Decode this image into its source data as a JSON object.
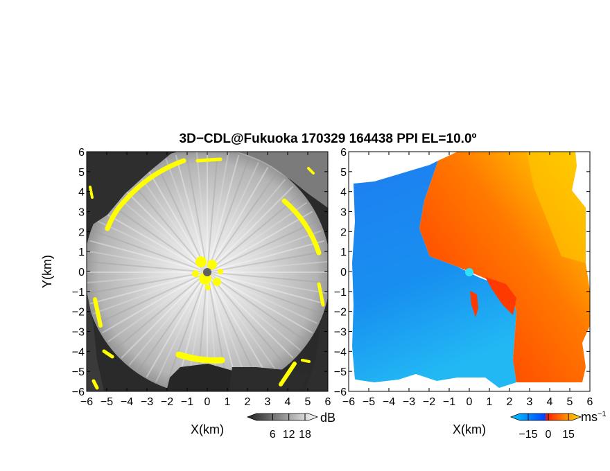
{
  "title": "3D−CDL@Fukuoka 170329 164438 PPI EL=10.0º",
  "chart_data": [
    {
      "type": "heatmap",
      "panel": "left",
      "quantity_unit": "dB",
      "xlabel": "X(km)",
      "ylabel": "Y(km)",
      "xlim": [
        -6,
        6
      ],
      "ylim": [
        -6,
        6
      ],
      "xticks": [
        "−6",
        "−5",
        "−4",
        "−3",
        "−2",
        "−1",
        "0",
        "1",
        "2",
        "3",
        "4",
        "5",
        "6"
      ],
      "yticks": [
        "6",
        "5",
        "4",
        "3",
        "2",
        "1",
        "0",
        "−1",
        "−2",
        "−3",
        "−4",
        "−5",
        "−6"
      ],
      "colorbar": {
        "label": "dB",
        "ticks": [
          "6",
          "12",
          "18"
        ],
        "tick_values": [
          6,
          12,
          18
        ],
        "colors": [
          "#202020",
          "#ffffff"
        ]
      },
      "flag_color": "#ffff00",
      "radar_site": [
        0,
        0
      ]
    },
    {
      "type": "heatmap",
      "panel": "right",
      "quantity_unit": "ms⁻¹",
      "xlabel": "X(km)",
      "ylabel": "",
      "xlim": [
        -6,
        6
      ],
      "ylim": [
        -6,
        6
      ],
      "xticks": [
        "−6",
        "−5",
        "−4",
        "−3",
        "−2",
        "−1",
        "0",
        "1",
        "2",
        "3",
        "4",
        "5",
        "6"
      ],
      "yticks": [
        "6",
        "5",
        "4",
        "3",
        "2",
        "1",
        "0",
        "−1",
        "−2",
        "−3",
        "−4",
        "−5",
        "−6"
      ],
      "colorbar": {
        "label": "ms",
        "label_superscript": "−1",
        "ticks": [
          "−15",
          "0",
          "15"
        ],
        "tick_values": [
          -15,
          0,
          15
        ],
        "colors": [
          "#00ccff",
          "#0044ff",
          "#ff2200",
          "#ffdd00"
        ]
      },
      "radar_site": [
        0,
        0
      ]
    }
  ]
}
